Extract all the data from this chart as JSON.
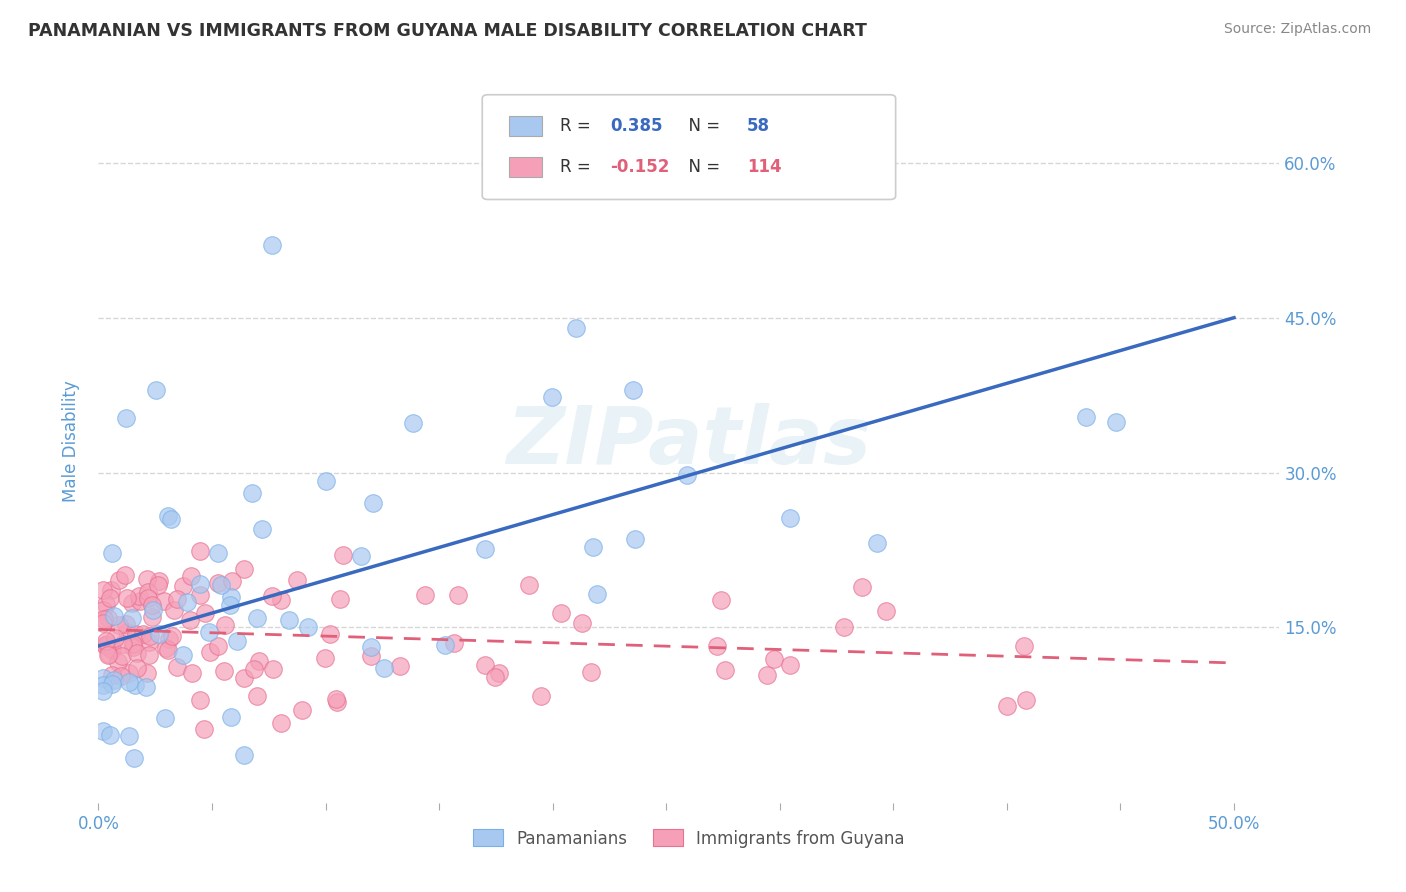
{
  "title": "PANAMANIAN VS IMMIGRANTS FROM GUYANA MALE DISABILITY CORRELATION CHART",
  "source": "Source: ZipAtlas.com",
  "ylabel": "Male Disability",
  "xlim": [
    0.0,
    0.52
  ],
  "ylim": [
    -0.02,
    0.68
  ],
  "yticks": [
    0.15,
    0.3,
    0.45,
    0.6
  ],
  "xticks": [
    0.0,
    0.05,
    0.1,
    0.15,
    0.2,
    0.25,
    0.3,
    0.35,
    0.4,
    0.45,
    0.5
  ],
  "xtick_labels_show": [
    true,
    false,
    false,
    false,
    false,
    false,
    false,
    false,
    false,
    false,
    true
  ],
  "series": [
    {
      "label": "Panamanians",
      "R": 0.385,
      "N": 58,
      "color": "#a8c8f0",
      "edge_color": "#7ab0e8",
      "trend_color": "#3a6abf",
      "blue_intercept": 0.132,
      "blue_slope": 0.636
    },
    {
      "label": "Immigrants from Guyana",
      "R": -0.152,
      "N": 114,
      "color": "#f5a0b8",
      "edge_color": "#e87090",
      "trend_color": "#e0607a",
      "pink_intercept": 0.148,
      "pink_slope": -0.065
    }
  ],
  "watermark": "ZIPatlas",
  "background_color": "#ffffff",
  "grid_color": "#cccccc",
  "title_color": "#333333",
  "tick_label_color": "#5b9bd5",
  "ylabel_color": "#5b9bd5",
  "legend_r_color": "#3a6abf",
  "legend_r2_color": "#e0607a"
}
